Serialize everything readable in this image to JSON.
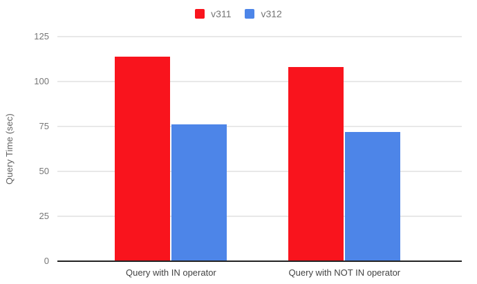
{
  "chart_data": {
    "type": "bar",
    "categories": [
      "Query with IN operator",
      "Query with NOT IN operator"
    ],
    "series": [
      {
        "name": "v311",
        "color": "#F9141D",
        "values": [
          114,
          108
        ]
      },
      {
        "name": "v312",
        "color": "#4D85E8",
        "values": [
          76,
          72
        ]
      }
    ],
    "xlabel": "",
    "ylabel": "Query Time (sec)",
    "ylim": [
      0,
      125
    ],
    "yticks": [
      0,
      25,
      50,
      75,
      100,
      125
    ],
    "grid": "horizontal",
    "legend_position": "top",
    "legend": [
      {
        "label": "v311"
      },
      {
        "label": "v312"
      }
    ]
  },
  "colors": {
    "background": "#ffffff",
    "gridline": "#e8e8e8",
    "axis_line": "#212121",
    "tick_text": "#757575",
    "category_text": "#424242",
    "axis_title_text": "#616161"
  }
}
